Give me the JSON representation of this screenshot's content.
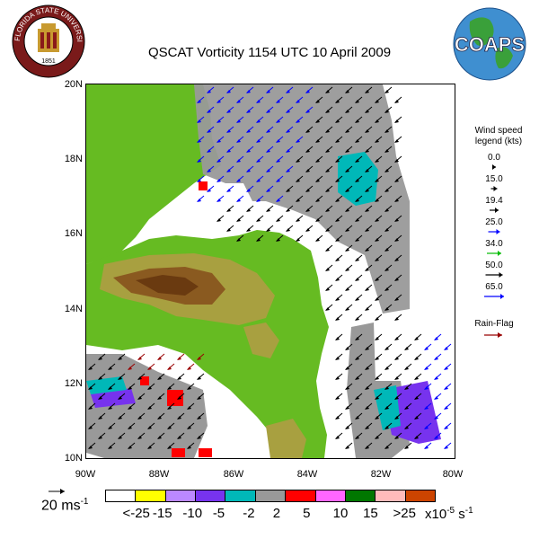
{
  "title": "QSCAT Vorticity 1154 UTC 10 April 2009",
  "logos": {
    "fsu_seal": "FLORIDA STATE UNIVERSITY",
    "fsu_year": "1851",
    "coaps": "COAPS"
  },
  "axes": {
    "lat_labels": [
      "20N",
      "18N",
      "16N",
      "14N",
      "12N",
      "10N"
    ],
    "lon_labels": [
      "90W",
      "88W",
      "86W",
      "84W",
      "82W",
      "80W"
    ]
  },
  "wind_legend": {
    "title_line1": "Wind speed",
    "title_line2": "legend (kts)",
    "entries": [
      {
        "value": "0.0",
        "color": "#000000"
      },
      {
        "value": "15.0",
        "color": "#000000"
      },
      {
        "value": "19.4",
        "color": "#000000"
      },
      {
        "value": "25.0",
        "color": "#0000ff"
      },
      {
        "value": "34.0",
        "color": "#00bb00"
      },
      {
        "value": "50.0",
        "color": "#000000"
      },
      {
        "value": "65.0",
        "color": "#0000ff"
      }
    ],
    "extra_arrow_color": "#00dd00",
    "rain_flag_label": "Rain-Flag",
    "rain_flag_color": "#990000"
  },
  "scale": {
    "value": "20",
    "unit": "ms",
    "exponent": "-1"
  },
  "colorbar": {
    "colors": [
      "#ffffff",
      "#ffff00",
      "#bb88ff",
      "#7733ee",
      "#00b8b8",
      "#999999",
      "#ff0000",
      "#ff66ff",
      "#007700",
      "#ffbbbb",
      "#cc4400"
    ],
    "labels": [
      "<-25",
      "-15",
      "-10",
      "-5",
      "-2",
      "2",
      "5",
      "10",
      "15",
      ">25"
    ],
    "unit_text": "x10",
    "unit_exp": "-5",
    "unit_suffix": "s",
    "unit_suffix_exp": "-1"
  },
  "colors": {
    "land_low": "#66bb22",
    "land_mid": "#a8a040",
    "land_high": "#8a5a20",
    "land_peak": "#6a3a10",
    "ocean": "#ffffff",
    "vort_gray": "#999999",
    "vort_cyan": "#00b8b8",
    "vort_purple": "#7733ee",
    "vort_red": "#ff0000"
  }
}
